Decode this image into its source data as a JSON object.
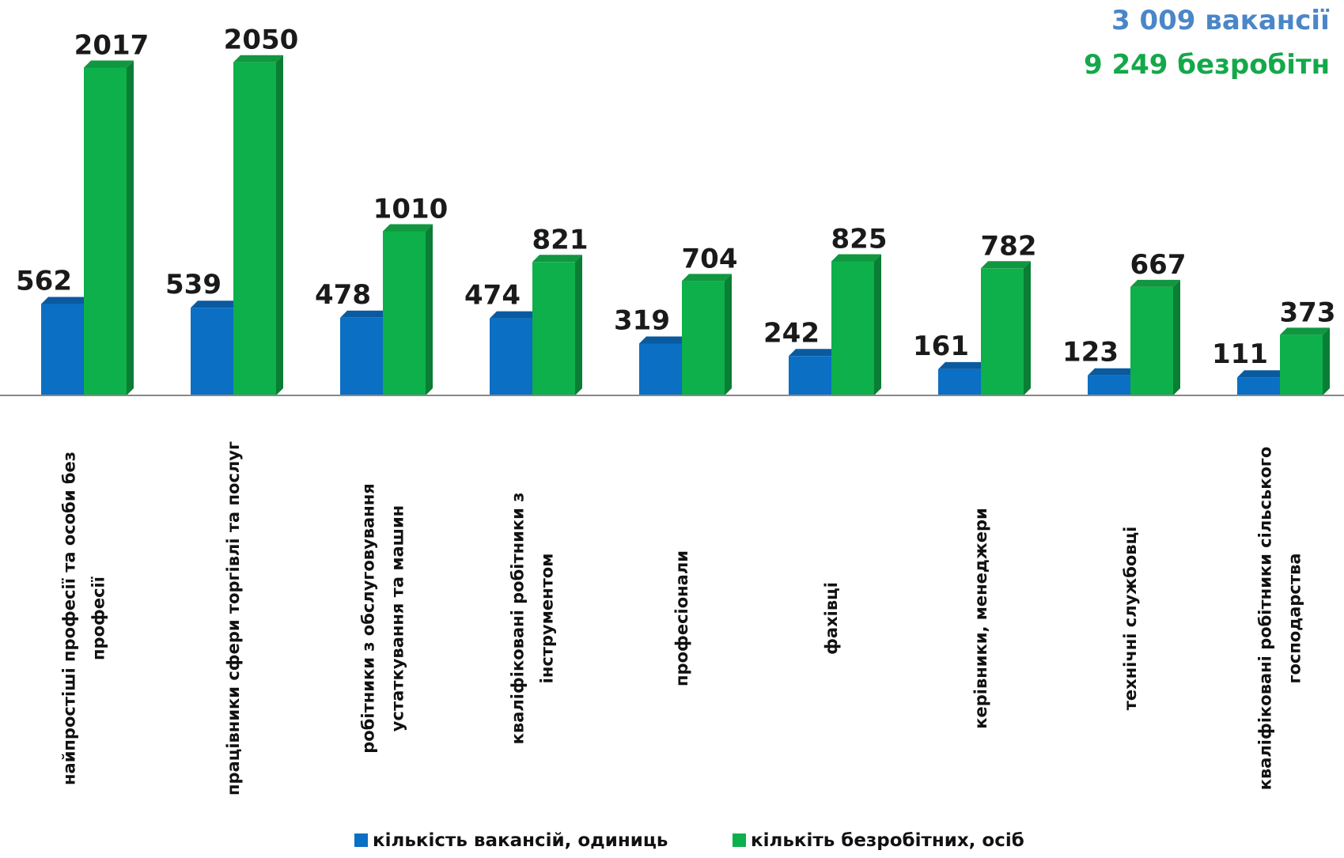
{
  "colors": {
    "vacancies": "#0b6fc4",
    "vacancies_top": "#0a5aa0",
    "vacancies_side": "#08508f",
    "unemployed": "#0db04b",
    "unemployed_top": "#10973f",
    "unemployed_side": "#0a7e34",
    "summary_vacancies": "#4a86c8",
    "summary_unemployed": "#14a84b",
    "axis": "#888888"
  },
  "summary": {
    "vacancies_text": "3 009 вакансії",
    "unemployed_text": "9 249 безробітн"
  },
  "chart_data": {
    "type": "bar",
    "categories": [
      [
        "найпростіші професії та особи без",
        "професії"
      ],
      [
        "працівники сфери торгівлі та послуг"
      ],
      [
        "робітники з обслуговування",
        "устаткування та машин"
      ],
      [
        "кваліфіковані робітники з",
        "інструментом"
      ],
      [
        "професіонали"
      ],
      [
        "фахівці"
      ],
      [
        "керівники, менеджери"
      ],
      [
        "технічні службовці"
      ],
      [
        "кваліфіковані робітники сільського",
        "господарства"
      ]
    ],
    "series": [
      {
        "name": "кількість вакансій, одиниць",
        "values": [
          562,
          539,
          478,
          474,
          319,
          242,
          161,
          123,
          111
        ]
      },
      {
        "name": "кількіть безробітних, осіб",
        "values": [
          2017,
          2050,
          1010,
          821,
          704,
          825,
          782,
          667,
          373
        ]
      }
    ],
    "legend_position": "bottom",
    "grid": false
  }
}
